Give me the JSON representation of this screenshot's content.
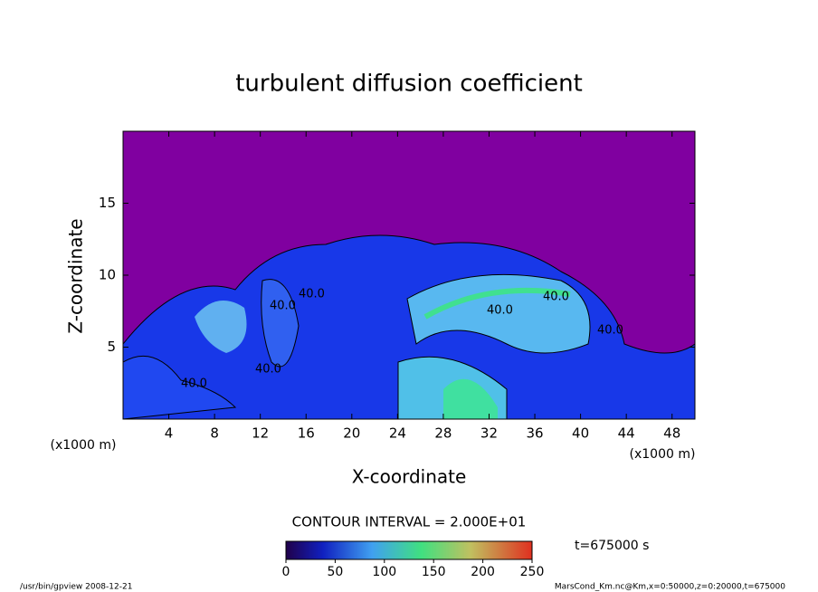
{
  "chart_data": {
    "type": "heatmap",
    "title": "turbulent diffusion coefficient",
    "xlabel": "X-coordinate",
    "ylabel": "Z-coordinate",
    "x_unit_label": "(x1000 m)",
    "xlim": [
      0,
      50
    ],
    "xticks": [
      4,
      8,
      12,
      16,
      20,
      24,
      28,
      32,
      36,
      40,
      44,
      48
    ],
    "ylim": [
      0,
      20
    ],
    "yticks": [
      5,
      10,
      15
    ],
    "background_color": "#8000a0",
    "contour_labels": [
      "40.0",
      "40.0",
      "40.0",
      "40.0",
      "40.0",
      "40.0",
      "40.0"
    ],
    "contour_interval_label": "CONTOUR INTERVAL = 2.000E+01",
    "colorbar": {
      "lim": [
        0,
        250
      ],
      "ticks": [
        0,
        50,
        100,
        150,
        200,
        250
      ]
    },
    "time_label": "t=675000 s",
    "footer_left": "/usr/bin/gpview   2008-12-21",
    "footer_right": "MarsCond_Km.nc@Km,x=0:50000,z=0:20000,t=675000"
  }
}
